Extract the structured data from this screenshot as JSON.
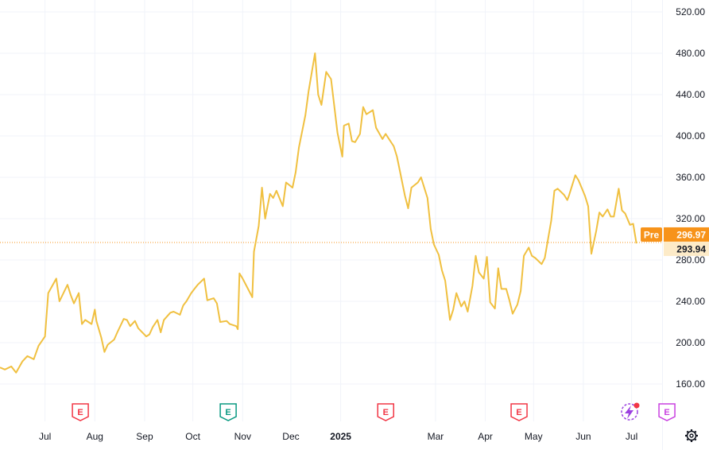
{
  "chart_data": {
    "type": "line",
    "title": "",
    "xlabel": "",
    "ylabel": "",
    "ylim": [
      140,
      525
    ],
    "y_ticks": [
      "160.00",
      "200.00",
      "240.00",
      "280.00",
      "320.00",
      "360.00",
      "400.00",
      "440.00",
      "480.00",
      "520.00"
    ],
    "x_ticks": [
      {
        "label": "Jul",
        "x": "2024-07-01"
      },
      {
        "label": "Aug",
        "x": "2024-08-01"
      },
      {
        "label": "Sep",
        "x": "2024-09-01"
      },
      {
        "label": "Oct",
        "x": "2024-10-01"
      },
      {
        "label": "Nov",
        "x": "2024-11-01"
      },
      {
        "label": "Dec",
        "x": "2024-12-01"
      },
      {
        "label": "2025",
        "x": "2025-01-01",
        "bold": true
      },
      {
        "label": "Mar",
        "x": "2025-03-01"
      },
      {
        "label": "Apr",
        "x": "2025-04-01"
      },
      {
        "label": "May",
        "x": "2025-05-01"
      },
      {
        "label": "Jun",
        "x": "2025-06-01"
      },
      {
        "label": "Jul",
        "x": "2025-07-01"
      }
    ],
    "xlim": [
      "2024-06-03",
      "2025-07-20"
    ],
    "grid": true,
    "series": [
      {
        "color": "#f0c040",
        "points": [
          [
            "2024-06-03",
            176
          ],
          [
            "2024-06-06",
            174
          ],
          [
            "2024-06-10",
            177
          ],
          [
            "2024-06-13",
            171
          ],
          [
            "2024-06-17",
            182
          ],
          [
            "2024-06-20",
            187
          ],
          [
            "2024-06-24",
            184
          ],
          [
            "2024-06-27",
            197
          ],
          [
            "2024-07-01",
            206
          ],
          [
            "2024-07-03",
            248
          ],
          [
            "2024-07-08",
            262
          ],
          [
            "2024-07-10",
            240
          ],
          [
            "2024-07-15",
            256
          ],
          [
            "2024-07-17",
            246
          ],
          [
            "2024-07-19",
            238
          ],
          [
            "2024-07-22",
            248
          ],
          [
            "2024-07-24",
            218
          ],
          [
            "2024-07-26",
            222
          ],
          [
            "2024-07-30",
            218
          ],
          [
            "2024-08-01",
            232
          ],
          [
            "2024-08-02",
            221
          ],
          [
            "2024-08-05",
            205
          ],
          [
            "2024-08-07",
            191
          ],
          [
            "2024-08-09",
            198
          ],
          [
            "2024-08-13",
            203
          ],
          [
            "2024-08-15",
            210
          ],
          [
            "2024-08-19",
            223
          ],
          [
            "2024-08-21",
            222
          ],
          [
            "2024-08-23",
            216
          ],
          [
            "2024-08-26",
            221
          ],
          [
            "2024-08-28",
            214
          ],
          [
            "2024-09-02",
            206
          ],
          [
            "2024-09-04",
            208
          ],
          [
            "2024-09-06",
            215
          ],
          [
            "2024-09-09",
            222
          ],
          [
            "2024-09-11",
            210
          ],
          [
            "2024-09-13",
            222
          ],
          [
            "2024-09-17",
            229
          ],
          [
            "2024-09-19",
            230
          ],
          [
            "2024-09-23",
            227
          ],
          [
            "2024-09-25",
            236
          ],
          [
            "2024-09-27",
            240
          ],
          [
            "2024-09-30",
            248
          ],
          [
            "2024-10-02",
            252
          ],
          [
            "2024-10-04",
            256
          ],
          [
            "2024-10-08",
            262
          ],
          [
            "2024-10-10",
            241
          ],
          [
            "2024-10-14",
            243
          ],
          [
            "2024-10-16",
            238
          ],
          [
            "2024-10-18",
            220
          ],
          [
            "2024-10-22",
            221
          ],
          [
            "2024-10-24",
            218
          ],
          [
            "2024-10-28",
            216
          ],
          [
            "2024-10-29",
            213
          ],
          [
            "2024-10-30",
            267
          ],
          [
            "2024-11-01",
            262
          ],
          [
            "2024-11-05",
            250
          ],
          [
            "2024-11-07",
            244
          ],
          [
            "2024-11-08",
            288
          ],
          [
            "2024-11-11",
            313
          ],
          [
            "2024-11-13",
            350
          ],
          [
            "2024-11-15",
            320
          ],
          [
            "2024-11-18",
            344
          ],
          [
            "2024-11-20",
            340
          ],
          [
            "2024-11-22",
            347
          ],
          [
            "2024-11-26",
            332
          ],
          [
            "2024-11-28",
            355
          ],
          [
            "2024-12-02",
            350
          ],
          [
            "2024-12-04",
            365
          ],
          [
            "2024-12-06",
            389
          ],
          [
            "2024-12-10",
            420
          ],
          [
            "2024-12-12",
            443
          ],
          [
            "2024-12-16",
            480
          ],
          [
            "2024-12-18",
            440
          ],
          [
            "2024-12-20",
            430
          ],
          [
            "2024-12-23",
            462
          ],
          [
            "2024-12-26",
            455
          ],
          [
            "2024-12-30",
            403
          ],
          [
            "2025-01-02",
            380
          ],
          [
            "2025-01-03",
            410
          ],
          [
            "2025-01-06",
            412
          ],
          [
            "2025-01-08",
            395
          ],
          [
            "2025-01-10",
            394
          ],
          [
            "2025-01-13",
            402
          ],
          [
            "2025-01-15",
            428
          ],
          [
            "2025-01-17",
            421
          ],
          [
            "2025-01-21",
            425
          ],
          [
            "2025-01-23",
            408
          ],
          [
            "2025-01-27",
            397
          ],
          [
            "2025-01-29",
            402
          ],
          [
            "2025-02-03",
            390
          ],
          [
            "2025-02-05",
            380
          ],
          [
            "2025-02-07",
            365
          ],
          [
            "2025-02-10",
            342
          ],
          [
            "2025-02-12",
            330
          ],
          [
            "2025-02-14",
            350
          ],
          [
            "2025-02-18",
            355
          ],
          [
            "2025-02-20",
            360
          ],
          [
            "2025-02-24",
            340
          ],
          [
            "2025-02-26",
            310
          ],
          [
            "2025-02-28",
            295
          ],
          [
            "2025-03-03",
            285
          ],
          [
            "2025-03-05",
            270
          ],
          [
            "2025-03-07",
            260
          ],
          [
            "2025-03-10",
            222
          ],
          [
            "2025-03-12",
            232
          ],
          [
            "2025-03-14",
            248
          ],
          [
            "2025-03-17",
            235
          ],
          [
            "2025-03-19",
            240
          ],
          [
            "2025-03-21",
            230
          ],
          [
            "2025-03-24",
            255
          ],
          [
            "2025-03-26",
            284
          ],
          [
            "2025-03-28",
            268
          ],
          [
            "2025-03-31",
            262
          ],
          [
            "2025-04-02",
            283
          ],
          [
            "2025-04-04",
            239
          ],
          [
            "2025-04-07",
            233
          ],
          [
            "2025-04-09",
            272
          ],
          [
            "2025-04-11",
            252
          ],
          [
            "2025-04-14",
            252
          ],
          [
            "2025-04-16",
            241
          ],
          [
            "2025-04-18",
            228
          ],
          [
            "2025-04-21",
            237
          ],
          [
            "2025-04-23",
            250
          ],
          [
            "2025-04-25",
            284
          ],
          [
            "2025-04-28",
            292
          ],
          [
            "2025-04-30",
            284
          ],
          [
            "2025-05-02",
            282
          ],
          [
            "2025-05-06",
            276
          ],
          [
            "2025-05-08",
            282
          ],
          [
            "2025-05-12",
            318
          ],
          [
            "2025-05-14",
            347
          ],
          [
            "2025-05-16",
            349
          ],
          [
            "2025-05-20",
            343
          ],
          [
            "2025-05-22",
            338
          ],
          [
            "2025-05-23",
            342
          ],
          [
            "2025-05-27",
            362
          ],
          [
            "2025-05-29",
            357
          ],
          [
            "2025-06-02",
            342
          ],
          [
            "2025-06-04",
            332
          ],
          [
            "2025-06-06",
            286
          ],
          [
            "2025-06-09",
            308
          ],
          [
            "2025-06-11",
            326
          ],
          [
            "2025-06-13",
            322
          ],
          [
            "2025-06-16",
            329
          ],
          [
            "2025-06-18",
            322
          ],
          [
            "2025-06-20",
            322
          ],
          [
            "2025-06-23",
            349
          ],
          [
            "2025-06-25",
            328
          ],
          [
            "2025-06-27",
            325
          ],
          [
            "2025-06-30",
            314
          ],
          [
            "2025-07-02",
            315
          ],
          [
            "2025-07-04",
            296
          ]
        ]
      }
    ],
    "last_price": 293.94,
    "last_price_label": "293.94",
    "premarket_price": 296.97,
    "premarket_price_label": "296.97",
    "premarket_label": "Pre",
    "earnings_markers": [
      {
        "x": "2024-07-23",
        "label": "E",
        "color": "#f23645"
      },
      {
        "x": "2024-10-23",
        "label": "E",
        "color": "#089981"
      },
      {
        "x": "2025-01-29",
        "label": "E",
        "color": "#f23645"
      },
      {
        "x": "2025-04-22",
        "label": "E",
        "color": "#f23645"
      },
      {
        "x": "2025-07-23",
        "label": "E",
        "color": "#c940e0"
      }
    ],
    "line_color": "#f0c040",
    "badge_color": "#f7931a",
    "icons": [
      "lightning-event-icon",
      "gear-settings-icon"
    ]
  }
}
